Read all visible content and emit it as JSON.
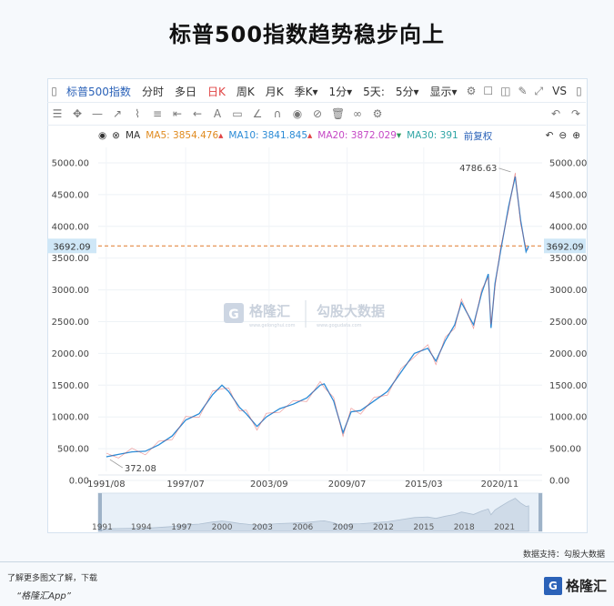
{
  "title": "标普500指数趋势稳步向上",
  "toolbar": {
    "symbol": "标普500指数",
    "items": [
      "分时",
      "多日",
      "日K",
      "周K",
      "月K",
      "季K",
      "1分",
      "5天",
      "5分",
      "显示"
    ],
    "active": "日K",
    "vs": "VS"
  },
  "ma": {
    "label": "MA",
    "ma5": "MA5: 3854.476",
    "ma10": "MA10: 3841.845",
    "ma20": "MA20: 3872.029",
    "ma30": "MA30: 391",
    "adj": "前复权",
    "colors": {
      "ma5": "#e08a1e",
      "ma10": "#2b8bd6",
      "ma20": "#c548c5",
      "ma30": "#2fa5a5",
      "up": "#e04444",
      "down": "#2e9a5a"
    }
  },
  "chart_data": {
    "type": "line",
    "title": "",
    "xlabel": "",
    "ylabel": "",
    "ylim": [
      0,
      5200
    ],
    "y_ticks": [
      "5000.00",
      "4500.00",
      "4000.00",
      "3500.00",
      "3000.00",
      "2500.00",
      "2000.00",
      "1500.00",
      "1000.00",
      "500.00",
      "0.00"
    ],
    "x_ticks": [
      "1991/08",
      "1997/07",
      "2003/09",
      "2009/07",
      "2015/03",
      "2020/11"
    ],
    "nav_ticks": [
      "1991",
      "1994",
      "1997",
      "2000",
      "2003",
      "2006",
      "2009",
      "2012",
      "2015",
      "2018",
      "2021"
    ],
    "current_value": "3692.09",
    "annotations": [
      {
        "label": "4786.63",
        "x": 2022.0,
        "y": 4786.63
      },
      {
        "label": "372.08",
        "x": 1991.6,
        "y": 372.08
      }
    ],
    "series": [
      {
        "x": [
          1991.6,
          1992.5,
          1993.5,
          1994.5,
          1995.5,
          1996.5,
          1997.5,
          1998.5,
          1999.5,
          2000.2,
          2000.7,
          2001.5,
          2002.0,
          2002.8,
          2003.5,
          2004.5,
          2005.5,
          2006.5,
          2007.5,
          2007.8,
          2008.5,
          2009.2,
          2009.8,
          2010.5,
          2011.5,
          2012.5,
          2013.5,
          2014.5,
          2015.5,
          2016.1,
          2016.8,
          2017.5,
          2018.0,
          2018.9,
          2019.5,
          2020.0,
          2020.2,
          2020.5,
          2020.9,
          2021.5,
          2022.0,
          2022.4,
          2022.8,
          2023.0
        ],
        "y": [
          372,
          410,
          450,
          460,
          560,
          700,
          950,
          1050,
          1350,
          1500,
          1400,
          1150,
          1050,
          850,
          1000,
          1130,
          1200,
          1300,
          1500,
          1520,
          1250,
          750,
          1080,
          1100,
          1250,
          1400,
          1700,
          2000,
          2080,
          1880,
          2200,
          2450,
          2800,
          2450,
          2950,
          3250,
          2400,
          3100,
          3600,
          4300,
          4786,
          4100,
          3600,
          3692
        ]
      }
    ],
    "grid": true
  },
  "watermark": {
    "brand": "格隆汇",
    "brand_sub": "www.gelonghui.com",
    "partner": "勾股大数据",
    "partner_sub": "www.gogudata.com"
  },
  "footer": {
    "source": "数据支持：勾股大数据",
    "line1": "了解更多图文了解，下载",
    "line2": "“格隆汇App”",
    "logo": "格隆汇"
  }
}
